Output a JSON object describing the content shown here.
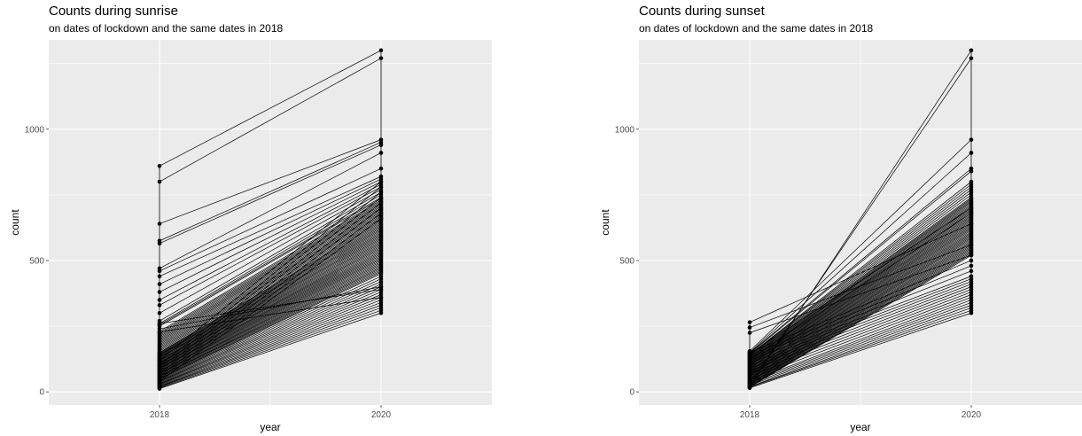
{
  "chart_data": [
    {
      "type": "line",
      "title": "Counts during sunrise",
      "subtitle": "on dates of lockdown and the same dates in 2018",
      "xlabel": "year",
      "ylabel": "count",
      "x": [
        2018,
        2020
      ],
      "xlim": [
        2017,
        2021
      ],
      "ylim": [
        -50,
        1340
      ],
      "y_ticks": [
        0,
        500,
        1000
      ],
      "x_tick_labels": [
        "2018",
        "2020"
      ],
      "y_tick_labels": [
        "0",
        "500",
        "1000"
      ],
      "grid": true,
      "series_pairs": [
        [
          860,
          1300
        ],
        [
          800,
          1270
        ],
        [
          640,
          960
        ],
        [
          575,
          950
        ],
        [
          565,
          940
        ],
        [
          470,
          910
        ],
        [
          460,
          850
        ],
        [
          440,
          820
        ],
        [
          410,
          810
        ],
        [
          380,
          800
        ],
        [
          350,
          790
        ],
        [
          330,
          780
        ],
        [
          300,
          770
        ],
        [
          270,
          760
        ],
        [
          260,
          750
        ],
        [
          255,
          740
        ],
        [
          250,
          735
        ],
        [
          230,
          730
        ],
        [
          225,
          725
        ],
        [
          220,
          720
        ],
        [
          215,
          715
        ],
        [
          210,
          710
        ],
        [
          205,
          705
        ],
        [
          200,
          700
        ],
        [
          195,
          695
        ],
        [
          190,
          690
        ],
        [
          185,
          685
        ],
        [
          180,
          680
        ],
        [
          175,
          675
        ],
        [
          170,
          670
        ],
        [
          165,
          665
        ],
        [
          160,
          660
        ],
        [
          155,
          655
        ],
        [
          150,
          650
        ],
        [
          148,
          645
        ],
        [
          145,
          640
        ],
        [
          142,
          635
        ],
        [
          140,
          630
        ],
        [
          138,
          625
        ],
        [
          135,
          620
        ],
        [
          132,
          615
        ],
        [
          130,
          610
        ],
        [
          128,
          605
        ],
        [
          125,
          600
        ],
        [
          122,
          595
        ],
        [
          120,
          590
        ],
        [
          118,
          585
        ],
        [
          115,
          580
        ],
        [
          112,
          575
        ],
        [
          110,
          570
        ],
        [
          108,
          565
        ],
        [
          105,
          560
        ],
        [
          102,
          555
        ],
        [
          100,
          550
        ],
        [
          98,
          545
        ],
        [
          95,
          540
        ],
        [
          92,
          535
        ],
        [
          90,
          530
        ],
        [
          88,
          525
        ],
        [
          85,
          520
        ],
        [
          82,
          515
        ],
        [
          80,
          510
        ],
        [
          78,
          505
        ],
        [
          75,
          500
        ],
        [
          72,
          495
        ],
        [
          70,
          490
        ],
        [
          68,
          485
        ],
        [
          65,
          480
        ],
        [
          62,
          475
        ],
        [
          60,
          470
        ],
        [
          58,
          465
        ],
        [
          55,
          460
        ],
        [
          52,
          455
        ],
        [
          50,
          450
        ],
        [
          48,
          440
        ],
        [
          45,
          430
        ],
        [
          42,
          420
        ],
        [
          40,
          410
        ],
        [
          38,
          400
        ],
        [
          35,
          390
        ],
        [
          32,
          380
        ],
        [
          30,
          370
        ],
        [
          28,
          360
        ],
        [
          25,
          350
        ],
        [
          22,
          340
        ],
        [
          20,
          330
        ],
        [
          18,
          320
        ],
        [
          15,
          310
        ],
        [
          12,
          300
        ],
        [
          260,
          390
        ],
        [
          240,
          400
        ],
        [
          228,
          360
        ],
        [
          120,
          800
        ],
        [
          100,
          780
        ],
        [
          90,
          760
        ],
        [
          80,
          740
        ],
        [
          70,
          720
        ],
        [
          60,
          700
        ],
        [
          50,
          680
        ],
        [
          40,
          660
        ]
      ]
    },
    {
      "type": "line",
      "title": "Counts during sunset",
      "subtitle": "on dates of lockdown and the same dates in 2018",
      "xlabel": "year",
      "ylabel": "count",
      "x": [
        2018,
        2020
      ],
      "xlim": [
        2017,
        2021
      ],
      "ylim": [
        -50,
        1340
      ],
      "y_ticks": [
        0,
        500,
        1000
      ],
      "x_tick_labels": [
        "2018",
        "2020"
      ],
      "y_tick_labels": [
        "0",
        "500",
        "1000"
      ],
      "grid": true,
      "series_pairs": [
        [
          20,
          1300
        ],
        [
          30,
          1270
        ],
        [
          265,
          640
        ],
        [
          245,
          560
        ],
        [
          225,
          520
        ],
        [
          155,
          960
        ],
        [
          150,
          910
        ],
        [
          148,
          850
        ],
        [
          145,
          840
        ],
        [
          142,
          800
        ],
        [
          140,
          790
        ],
        [
          138,
          780
        ],
        [
          135,
          770
        ],
        [
          132,
          760
        ],
        [
          130,
          750
        ],
        [
          128,
          740
        ],
        [
          125,
          735
        ],
        [
          122,
          730
        ],
        [
          120,
          725
        ],
        [
          118,
          720
        ],
        [
          115,
          715
        ],
        [
          112,
          710
        ],
        [
          110,
          705
        ],
        [
          108,
          700
        ],
        [
          105,
          695
        ],
        [
          102,
          690
        ],
        [
          100,
          685
        ],
        [
          98,
          680
        ],
        [
          95,
          675
        ],
        [
          92,
          670
        ],
        [
          90,
          665
        ],
        [
          88,
          660
        ],
        [
          85,
          655
        ],
        [
          82,
          650
        ],
        [
          80,
          645
        ],
        [
          78,
          640
        ],
        [
          75,
          635
        ],
        [
          72,
          630
        ],
        [
          70,
          625
        ],
        [
          68,
          620
        ],
        [
          65,
          615
        ],
        [
          62,
          610
        ],
        [
          60,
          605
        ],
        [
          58,
          600
        ],
        [
          55,
          595
        ],
        [
          52,
          590
        ],
        [
          50,
          585
        ],
        [
          48,
          580
        ],
        [
          45,
          575
        ],
        [
          42,
          570
        ],
        [
          40,
          565
        ],
        [
          38,
          560
        ],
        [
          35,
          555
        ],
        [
          32,
          550
        ],
        [
          30,
          545
        ],
        [
          28,
          540
        ],
        [
          25,
          535
        ],
        [
          22,
          530
        ],
        [
          20,
          525
        ],
        [
          18,
          520
        ],
        [
          150,
          500
        ],
        [
          140,
          480
        ],
        [
          130,
          460
        ],
        [
          120,
          440
        ],
        [
          110,
          430
        ],
        [
          100,
          420
        ],
        [
          90,
          410
        ],
        [
          80,
          400
        ],
        [
          70,
          390
        ],
        [
          60,
          380
        ],
        [
          50,
          370
        ],
        [
          40,
          360
        ],
        [
          35,
          350
        ],
        [
          30,
          340
        ],
        [
          25,
          330
        ],
        [
          20,
          320
        ],
        [
          18,
          310
        ],
        [
          15,
          300
        ],
        [
          145,
          700
        ],
        [
          125,
          680
        ]
      ]
    }
  ]
}
